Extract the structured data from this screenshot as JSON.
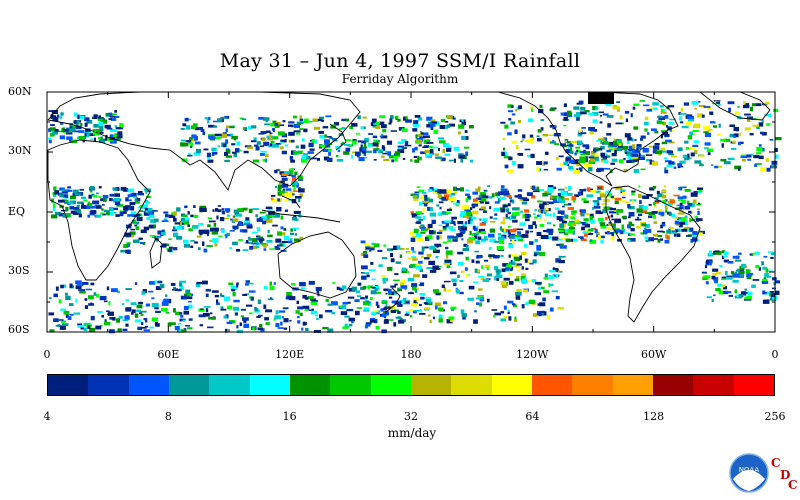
{
  "title": "May 31 – Jun 4, 1997 SSM/I Rainfall",
  "subtitle": "Ferriday Algorithm",
  "lat_labels": [
    "60N",
    "30N",
    "EQ",
    "30S",
    "60S"
  ],
  "lon_labels": [
    "0",
    "60E",
    "120E",
    "180",
    "120W",
    "60W",
    "0"
  ],
  "colorbar": {
    "colors": [
      "#001f7a",
      "#0033b3",
      "#0055ff",
      "#009999",
      "#00c8c8",
      "#00ffff",
      "#009300",
      "#00c800",
      "#00ff00",
      "#b4b400",
      "#dcdc00",
      "#ffff00",
      "#ff5500",
      "#ff8000",
      "#ffa000",
      "#960000",
      "#c80000",
      "#ff0000"
    ],
    "tick_labels": [
      "4",
      "8",
      "16",
      "32",
      "64",
      "128",
      "256"
    ],
    "unit": "mm/day"
  },
  "logo": {
    "text": "NOAA",
    "letters": [
      "C",
      "D",
      "C"
    ]
  }
}
